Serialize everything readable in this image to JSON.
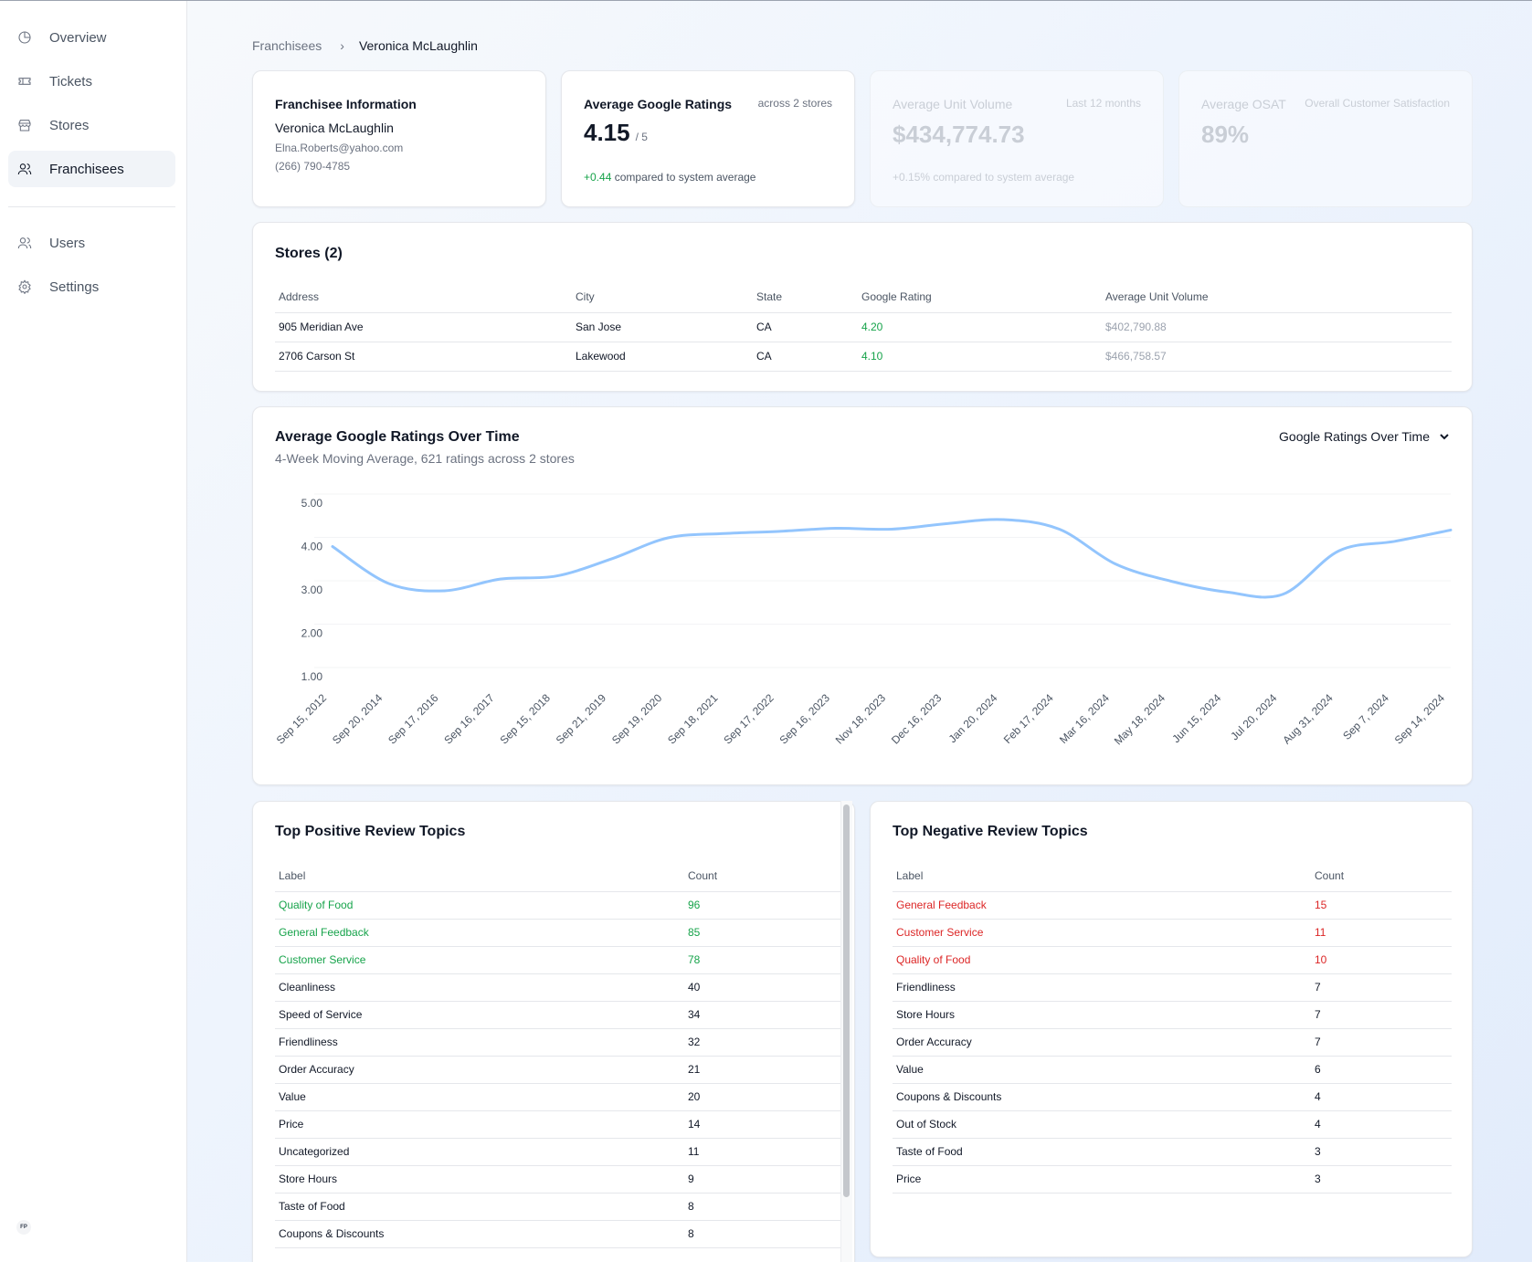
{
  "sidebar": {
    "items": [
      {
        "label": "Overview",
        "icon": "chart-pie-icon"
      },
      {
        "label": "Tickets",
        "icon": "ticket-icon"
      },
      {
        "label": "Stores",
        "icon": "store-icon"
      },
      {
        "label": "Franchisees",
        "icon": "users-icon",
        "active": true
      },
      {
        "label": "Users",
        "icon": "user-group-icon"
      },
      {
        "label": "Settings",
        "icon": "gear-icon"
      }
    ],
    "user_initials": "FP"
  },
  "breadcrumb": {
    "parent": "Franchisees",
    "current": "Veronica McLaughlin"
  },
  "franchisee_card": {
    "title": "Franchisee Information",
    "name": "Veronica McLaughlin",
    "email": "Elna.Roberts@yahoo.com",
    "phone": "(266) 790-4785"
  },
  "ratings_card": {
    "title": "Average Google Ratings",
    "note": "across 2 stores",
    "value": "4.15",
    "out_of": "/ 5",
    "delta": "+0.44",
    "delta_text": "compared to system average"
  },
  "auv_card": {
    "title": "Average Unit Volume",
    "note": "Last 12 months",
    "value": "$434,774.73",
    "delta_text": "+0.15% compared to system average"
  },
  "osat_card": {
    "title": "Average OSAT",
    "note": "Overall Customer Satisfaction",
    "value": "89%"
  },
  "stores": {
    "title": "Stores (2)",
    "headers": [
      "Address",
      "City",
      "State",
      "Google Rating",
      "Average Unit Volume"
    ],
    "rows": [
      {
        "address": "905 Meridian Ave",
        "city": "San Jose",
        "state": "CA",
        "rating": "4.20",
        "auv": "$402,790.88"
      },
      {
        "address": "2706 Carson St",
        "city": "Lakewood",
        "state": "CA",
        "rating": "4.10",
        "auv": "$466,758.57"
      }
    ]
  },
  "chart_section": {
    "title": "Average Google Ratings Over Time",
    "subtitle": "4-Week Moving Average, 621 ratings across 2 stores",
    "dropdown_label": "Google Ratings Over Time"
  },
  "chart_data": {
    "type": "line",
    "title": "Average Google Ratings Over Time",
    "subtitle": "4-Week Moving Average, 621 ratings across 2 stores",
    "x": [
      "Sep 15, 2012",
      "Sep 20, 2014",
      "Sep 17, 2016",
      "Sep 16, 2017",
      "Sep 15, 2018",
      "Sep 21, 2019",
      "Sep 19, 2020",
      "Sep 18, 2021",
      "Sep 17, 2022",
      "Sep 16, 2023",
      "Nov 18, 2023",
      "Dec 16, 2023",
      "Jan 20, 2024",
      "Feb 17, 2024",
      "Mar 16, 2024",
      "May 18, 2024",
      "Jun 15, 2024",
      "Jul 20, 2024",
      "Aug 31, 2024",
      "Sep 7, 2024",
      "Sep 14, 2024"
    ],
    "series": [
      {
        "values": [
          4.0,
          3.15,
          2.98,
          3.25,
          3.32,
          3.72,
          4.2,
          4.3,
          4.35,
          4.42,
          4.4,
          4.53,
          4.62,
          4.4,
          3.6,
          3.2,
          2.95,
          2.9,
          3.9,
          4.12,
          4.38
        ]
      }
    ],
    "yticks": [
      "5.00",
      "4.00",
      "3.00",
      "2.00",
      "1.00"
    ],
    "ylim": [
      1,
      5
    ],
    "color": "#93c5fd",
    "grid": true
  },
  "positive_topics": {
    "title": "Top Positive Review Topics",
    "headers": [
      "Label",
      "Count"
    ],
    "rows": [
      {
        "label": "Quality of Food",
        "count": "96",
        "highlight": true
      },
      {
        "label": "General Feedback",
        "count": "85",
        "highlight": true
      },
      {
        "label": "Customer Service",
        "count": "78",
        "highlight": true
      },
      {
        "label": "Cleanliness",
        "count": "40"
      },
      {
        "label": "Speed of Service",
        "count": "34"
      },
      {
        "label": "Friendliness",
        "count": "32"
      },
      {
        "label": "Order Accuracy",
        "count": "21"
      },
      {
        "label": "Value",
        "count": "20"
      },
      {
        "label": "Price",
        "count": "14"
      },
      {
        "label": "Uncategorized",
        "count": "11"
      },
      {
        "label": "Store Hours",
        "count": "9"
      },
      {
        "label": "Taste of Food",
        "count": "8"
      },
      {
        "label": "Coupons & Discounts",
        "count": "8"
      }
    ]
  },
  "negative_topics": {
    "title": "Top Negative Review Topics",
    "headers": [
      "Label",
      "Count"
    ],
    "rows": [
      {
        "label": "General Feedback",
        "count": "15",
        "highlight": true
      },
      {
        "label": "Customer Service",
        "count": "11",
        "highlight": true
      },
      {
        "label": "Quality of Food",
        "count": "10",
        "highlight": true
      },
      {
        "label": "Friendliness",
        "count": "7"
      },
      {
        "label": "Store Hours",
        "count": "7"
      },
      {
        "label": "Order Accuracy",
        "count": "7"
      },
      {
        "label": "Value",
        "count": "6"
      },
      {
        "label": "Coupons & Discounts",
        "count": "4"
      },
      {
        "label": "Out of Stock",
        "count": "4"
      },
      {
        "label": "Taste of Food",
        "count": "3"
      },
      {
        "label": "Price",
        "count": "3"
      }
    ]
  },
  "colors": {
    "positive": "#16a34a",
    "negative": "#dc2626",
    "line": "#93c5fd",
    "active_nav_bg": "#f1f4f8"
  }
}
